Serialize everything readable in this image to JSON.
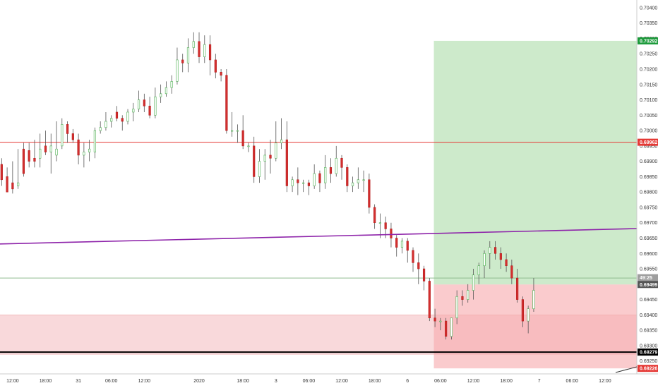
{
  "chart_data": {
    "type": "candlestick",
    "y_ticks": [
      "0.70400",
      "0.70350",
      "0.70300",
      "0.70250",
      "0.70200",
      "0.70150",
      "0.70100",
      "0.70050",
      "0.70000",
      "0.69950",
      "0.69900",
      "0.69850",
      "0.69800",
      "0.69750",
      "0.69700",
      "0.69650",
      "0.69600",
      "0.69550",
      "0.69500",
      "0.69450",
      "0.69400",
      "0.69350",
      "0.69300",
      "0.69250"
    ],
    "x_ticks": [
      {
        "label": "12:00",
        "t": 1
      },
      {
        "label": "18:00",
        "t": 4
      },
      {
        "label": "31",
        "t": 7
      },
      {
        "label": "06:00",
        "t": 10
      },
      {
        "label": "12:00",
        "t": 13
      },
      {
        "label": "2020",
        "t": 18
      },
      {
        "label": "18:00",
        "t": 22
      },
      {
        "label": "3",
        "t": 25
      },
      {
        "label": "06:00",
        "t": 28
      },
      {
        "label": "12:00",
        "t": 31
      },
      {
        "label": "18:00",
        "t": 34
      },
      {
        "label": "6",
        "t": 37
      },
      {
        "label": "06:00",
        "t": 40
      },
      {
        "label": "12:00",
        "t": 43
      },
      {
        "label": "18:00",
        "t": 46
      },
      {
        "label": "7",
        "t": 49
      },
      {
        "label": "06:00",
        "t": 52
      },
      {
        "label": "12:00",
        "t": 55
      }
    ],
    "t_range": [
      -0.15,
      57.9
    ],
    "ylim": [
      0.69208,
      0.70425
    ],
    "candles": [
      [
        0.6989,
        0.6991,
        0.6984,
        0.6982
      ],
      [
        0.6985,
        0.6988,
        0.698,
        0.6981
      ],
      [
        0.6983,
        0.699,
        0.6981,
        0.69795
      ],
      [
        0.6982,
        0.6994,
        0.6983,
        0.6981
      ],
      [
        0.6994,
        0.6996,
        0.6986,
        0.6985
      ],
      [
        0.69935,
        0.6996,
        0.699,
        0.6988
      ],
      [
        0.6991,
        0.6997,
        0.699,
        0.6988
      ],
      [
        0.6991,
        0.6999,
        0.6994,
        0.6988
      ],
      [
        0.6995,
        0.7,
        0.6993,
        0.6992
      ],
      [
        0.6993,
        0.6999,
        0.6995,
        0.6986
      ],
      [
        0.6992,
        0.7003,
        0.6994,
        0.699
      ],
      [
        0.6995,
        0.7004,
        0.7002,
        0.6994
      ],
      [
        0.7002,
        0.7003,
        0.6999,
        0.6996
      ],
      [
        0.6999,
        0.70005,
        0.6997,
        0.6996
      ],
      [
        0.6997,
        0.6999,
        0.6992,
        0.6989
      ],
      [
        0.6992,
        0.6996,
        0.6993,
        0.6988
      ],
      [
        0.6993,
        0.6997,
        0.6994,
        0.699
      ],
      [
        0.6993,
        0.7001,
        0.7,
        0.6991
      ],
      [
        0.7,
        0.7003,
        0.7001,
        0.6999
      ],
      [
        0.7001,
        0.7006,
        0.7003,
        0.7
      ],
      [
        0.7003,
        0.7005,
        0.7004,
        0.7001
      ],
      [
        0.7006,
        0.7008,
        0.7004,
        0.7003
      ],
      [
        0.7004,
        0.7005,
        0.7003,
        0.7
      ],
      [
        0.7003,
        0.7007,
        0.7006,
        0.7002
      ],
      [
        0.7006,
        0.7009,
        0.7007,
        0.7003
      ],
      [
        0.7007,
        0.7013,
        0.701,
        0.7006
      ],
      [
        0.701,
        0.7012,
        0.7008,
        0.7006
      ],
      [
        0.7008,
        0.7011,
        0.7005,
        0.7004
      ],
      [
        0.7005,
        0.7014,
        0.7011,
        0.7004
      ],
      [
        0.7011,
        0.7015,
        0.7012,
        0.7009
      ],
      [
        0.7012,
        0.7016,
        0.7014,
        0.7011
      ],
      [
        0.7014,
        0.7018,
        0.7016,
        0.7012
      ],
      [
        0.7016,
        0.7027,
        0.7023,
        0.7015
      ],
      [
        0.7023,
        0.7025,
        0.7022,
        0.7019
      ],
      [
        0.7022,
        0.703,
        0.7027,
        0.7019
      ],
      [
        0.7027,
        0.7032,
        0.7029,
        0.7025
      ],
      [
        0.7029,
        0.7032,
        0.7024,
        0.7022
      ],
      [
        0.7024,
        0.7031,
        0.7028,
        0.7022
      ],
      [
        0.7028,
        0.7031,
        0.7023,
        0.7018
      ],
      [
        0.7023,
        0.7025,
        0.7019,
        0.7017
      ],
      [
        0.7019,
        0.702,
        0.7018,
        0.7016
      ],
      [
        0.7018,
        0.702,
        0.7,
        0.6999
      ],
      [
        0.7,
        0.7006,
        0.7,
        0.6998
      ],
      [
        0.7,
        0.7002,
        0.7,
        0.6996
      ],
      [
        0.7,
        0.7005,
        0.6995,
        0.6994
      ],
      [
        0.6995,
        0.6996,
        0.6995,
        0.6993
      ],
      [
        0.6995,
        0.6998,
        0.6985,
        0.6983
      ],
      [
        0.6985,
        0.6994,
        0.699,
        0.6983
      ],
      [
        0.699,
        0.6994,
        0.6992,
        0.6984
      ],
      [
        0.6992,
        0.6997,
        0.6991,
        0.6986
      ],
      [
        0.6991,
        0.7003,
        0.6996,
        0.699
      ],
      [
        0.6996,
        0.7004,
        0.6997,
        0.6994
      ],
      [
        0.6997,
        0.7003,
        0.6982,
        0.698
      ],
      [
        0.6982,
        0.6985,
        0.6984,
        0.698
      ],
      [
        0.6984,
        0.6988,
        0.6983,
        0.6979
      ],
      [
        0.6983,
        0.6984,
        0.6983,
        0.698
      ],
      [
        0.6983,
        0.6984,
        0.6982,
        0.6979
      ],
      [
        0.6982,
        0.6989,
        0.6986,
        0.6981
      ],
      [
        0.6986,
        0.6987,
        0.6983,
        0.698
      ],
      [
        0.6983,
        0.6992,
        0.6988,
        0.6981
      ],
      [
        0.6988,
        0.6991,
        0.6986,
        0.6983
      ],
      [
        0.6986,
        0.6995,
        0.6991,
        0.6985
      ],
      [
        0.6991,
        0.6992,
        0.6988,
        0.6984
      ],
      [
        0.6988,
        0.6989,
        0.6982,
        0.698
      ],
      [
        0.6982,
        0.6985,
        0.6983,
        0.698
      ],
      [
        0.6983,
        0.6988,
        0.6984,
        0.6981
      ],
      [
        0.6984,
        0.6987,
        0.6984,
        0.698
      ],
      [
        0.6984,
        0.6986,
        0.6975,
        0.6973
      ],
      [
        0.6975,
        0.6976,
        0.697,
        0.6968
      ],
      [
        0.697,
        0.6973,
        0.697,
        0.6965
      ],
      [
        0.697,
        0.6972,
        0.6968,
        0.6965
      ],
      [
        0.6968,
        0.697,
        0.6965,
        0.6962
      ],
      [
        0.6965,
        0.6966,
        0.6962,
        0.6959
      ],
      [
        0.6962,
        0.6965,
        0.6964,
        0.696
      ],
      [
        0.6964,
        0.6965,
        0.6961,
        0.6957
      ],
      [
        0.6961,
        0.6962,
        0.6957,
        0.6954
      ],
      [
        0.6957,
        0.696,
        0.6955,
        0.695
      ],
      [
        0.6955,
        0.6956,
        0.6951,
        0.6948
      ],
      [
        0.6951,
        0.6952,
        0.6939,
        0.6938
      ],
      [
        0.6939,
        0.6942,
        0.6938,
        0.6936
      ],
      [
        0.6938,
        0.6939,
        0.6938,
        0.6935
      ],
      [
        0.6938,
        0.6939,
        0.6933,
        0.6932
      ],
      [
        0.6933,
        0.6939,
        0.6939,
        0.6932
      ],
      [
        0.6939,
        0.6948,
        0.6946,
        0.6937
      ],
      [
        0.6946,
        0.6948,
        0.6945,
        0.6943
      ],
      [
        0.6945,
        0.695,
        0.6948,
        0.6944
      ],
      [
        0.6948,
        0.6955,
        0.6953,
        0.6945
      ],
      [
        0.6953,
        0.6957,
        0.6956,
        0.695
      ],
      [
        0.6956,
        0.6961,
        0.696,
        0.6952
      ],
      [
        0.696,
        0.6964,
        0.6962,
        0.6955
      ],
      [
        0.6962,
        0.6964,
        0.696,
        0.6958
      ],
      [
        0.696,
        0.6962,
        0.6958,
        0.6955
      ],
      [
        0.6958,
        0.696,
        0.6956,
        0.6954
      ],
      [
        0.6956,
        0.6958,
        0.6952,
        0.695
      ],
      [
        0.6952,
        0.6955,
        0.6945,
        0.6944
      ],
      [
        0.6945,
        0.6946,
        0.6938,
        0.6936
      ],
      [
        0.6938,
        0.6943,
        0.6942,
        0.6934
      ],
      [
        0.6942,
        0.6952,
        0.6948,
        0.6941
      ]
    ],
    "horizontal_lines": [
      {
        "price": 0.69962,
        "color": "#e53935"
      },
      {
        "price": 0.6952,
        "color": "#8fbc8f"
      },
      {
        "price": 0.69279,
        "color": "#000000"
      }
    ],
    "trendline": {
      "start": [
        -0.15,
        0.69631
      ],
      "end": [
        57.9,
        0.69681
      ],
      "color": "#8e24aa"
    },
    "support_zone": {
      "top": 0.694,
      "bottom": 0.6927,
      "color": "#f4b9bd"
    },
    "position": {
      "t_start": 39.4,
      "entry": 0.69499,
      "target": 0.70292,
      "stop": 0.69226
    },
    "price_labels": [
      {
        "text": "0.70292",
        "price": 0.70292,
        "bg": "#1b9a3a"
      },
      {
        "text": "0.69962",
        "price": 0.69962,
        "bg": "#e53935"
      },
      {
        "text": "49:25",
        "price": 0.69521,
        "bg": "#9e9e9e"
      },
      {
        "text": "0.69499",
        "price": 0.69499,
        "bg": "#555555"
      },
      {
        "text": "0.69279",
        "price": 0.69279,
        "bg": "#000000"
      },
      {
        "text": "0.69226",
        "price": 0.69226,
        "bg": "#e53935"
      }
    ],
    "colors": {
      "up": "#ffffff",
      "up_border": "#4caf50",
      "down": "#d32f2f",
      "down_border": "#b71c1c",
      "wick": "#555555"
    }
  }
}
